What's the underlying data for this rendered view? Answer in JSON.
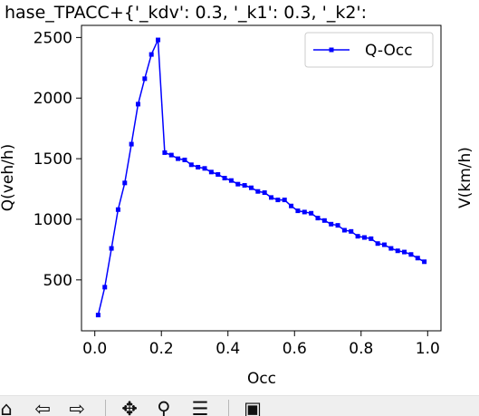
{
  "window": {
    "title_fragment": "hase_TPACC+{'_kdv': 0.3, '_k1': 0.3, '_k2':"
  },
  "chart_data": {
    "type": "line",
    "title": "hase_TPACC+{'_kdv': 0.3, '_k1': 0.3, '_k2':",
    "xlabel": "Occ",
    "ylabel": "Q(veh/h)",
    "ylabel_right": "V(km/h)",
    "xlim": [
      -0.04,
      1.04
    ],
    "ylim": [
      80,
      2600
    ],
    "xticks": [
      0.0,
      0.2,
      0.4,
      0.6,
      0.8,
      1.0
    ],
    "xtick_labels": [
      "0.0",
      "0.2",
      "0.4",
      "0.6",
      "0.8",
      "1.0"
    ],
    "yticks": [
      500,
      1000,
      1500,
      2000,
      2500
    ],
    "ytick_labels": [
      "500",
      "1000",
      "1500",
      "2000",
      "2500"
    ],
    "grid": false,
    "legend_position": "top-right",
    "series": [
      {
        "name": "Q-Occ",
        "color": "#0000ff",
        "marker": "square",
        "x": [
          0.01,
          0.03,
          0.05,
          0.07,
          0.09,
          0.11,
          0.13,
          0.15,
          0.17,
          0.19,
          0.21,
          0.23,
          0.25,
          0.27,
          0.29,
          0.31,
          0.33,
          0.35,
          0.37,
          0.39,
          0.41,
          0.43,
          0.45,
          0.47,
          0.49,
          0.51,
          0.53,
          0.55,
          0.57,
          0.59,
          0.61,
          0.63,
          0.65,
          0.67,
          0.69,
          0.71,
          0.73,
          0.75,
          0.77,
          0.79,
          0.81,
          0.83,
          0.85,
          0.87,
          0.89,
          0.91,
          0.93,
          0.95,
          0.97,
          0.99
        ],
        "y": [
          210,
          440,
          760,
          1080,
          1300,
          1620,
          1950,
          2160,
          2360,
          2480,
          1550,
          1530,
          1500,
          1490,
          1450,
          1430,
          1420,
          1390,
          1370,
          1340,
          1320,
          1290,
          1280,
          1260,
          1230,
          1220,
          1180,
          1160,
          1160,
          1110,
          1070,
          1060,
          1050,
          1010,
          990,
          960,
          950,
          910,
          900,
          860,
          850,
          840,
          800,
          790,
          760,
          740,
          730,
          710,
          680,
          650
        ]
      }
    ]
  },
  "toolbar": {
    "home_icon": "home-icon",
    "back_icon": "back-arrow-icon",
    "forward_icon": "forward-arrow-icon",
    "pan_icon": "pan-icon",
    "zoom_icon": "zoom-icon",
    "configure_icon": "configure-subplots-icon",
    "save_icon": "save-icon"
  }
}
